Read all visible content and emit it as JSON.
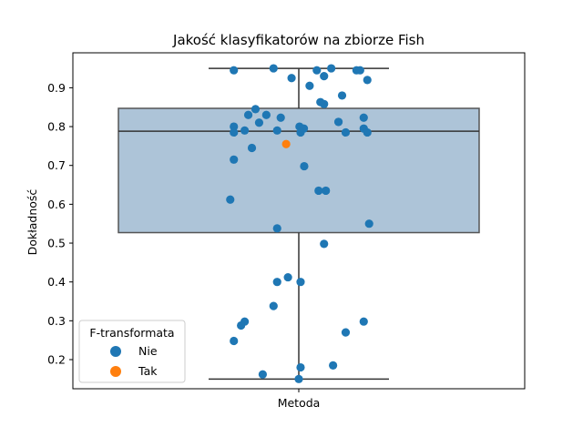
{
  "chart_data": {
    "type": "box",
    "title": "Jakość klasyfikatorów na zbiorze Fish",
    "xlabel": "",
    "ylabel": "Dokładność",
    "categories": [
      "Metoda"
    ],
    "ylim": [
      0.125,
      0.99
    ],
    "yticks": [
      0.2,
      0.3,
      0.4,
      0.5,
      0.6,
      0.7,
      0.8,
      0.9
    ],
    "ytick_labels": [
      "0.2",
      "0.3",
      "0.4",
      "0.5",
      "0.6",
      "0.7",
      "0.8",
      "0.9"
    ],
    "box": {
      "whisker_low": 0.15,
      "q1": 0.527,
      "median": 0.788,
      "q3": 0.847,
      "whisker_high": 0.95,
      "fill": "#adc4d8",
      "edge": "#555555"
    },
    "legend": {
      "title": "F-transformata",
      "location": "lower left",
      "entries": [
        {
          "label": "Nie",
          "color": "#1f77b4"
        },
        {
          "label": "Tak",
          "color": "#ff7f0e"
        }
      ]
    },
    "series": [
      {
        "name": "Nie",
        "color": "#1f77b4",
        "x_jitter": [
          -0.18,
          -0.07,
          -0.02,
          0.05,
          0.07,
          0.09,
          0.16,
          0.17,
          0.19,
          0.03,
          0.12,
          0.07,
          0.06,
          0.11,
          0.18,
          -0.12,
          -0.09,
          -0.14,
          -0.05,
          -0.11,
          -0.06,
          -0.18,
          -0.18,
          -0.15,
          0.002,
          0.014,
          0.11,
          0.13,
          0.18,
          0.19,
          0.005,
          -0.13,
          -0.18,
          0.015,
          0.055,
          0.075,
          -0.19,
          -0.06,
          0.195,
          0.07,
          -0.06,
          -0.03,
          0.005,
          -0.07,
          -0.15,
          -0.16,
          0.13,
          0.18,
          -0.18,
          0.005,
          0.095,
          -0.1,
          0.0
        ],
        "y": [
          0.945,
          0.95,
          0.925,
          0.945,
          0.93,
          0.95,
          0.945,
          0.945,
          0.92,
          0.905,
          0.88,
          0.858,
          0.863,
          0.812,
          0.823,
          0.845,
          0.83,
          0.83,
          0.823,
          0.81,
          0.79,
          0.8,
          0.785,
          0.79,
          0.8,
          0.795,
          0.812,
          0.785,
          0.795,
          0.785,
          0.785,
          0.745,
          0.715,
          0.698,
          0.635,
          0.635,
          0.612,
          0.538,
          0.55,
          0.498,
          0.4,
          0.412,
          0.4,
          0.338,
          0.298,
          0.288,
          0.27,
          0.298,
          0.248,
          0.18,
          0.185,
          0.162,
          0.15
        ]
      },
      {
        "name": "Tak",
        "color": "#ff7f0e",
        "x_jitter": [
          -0.035
        ],
        "y": [
          0.755
        ]
      }
    ]
  }
}
